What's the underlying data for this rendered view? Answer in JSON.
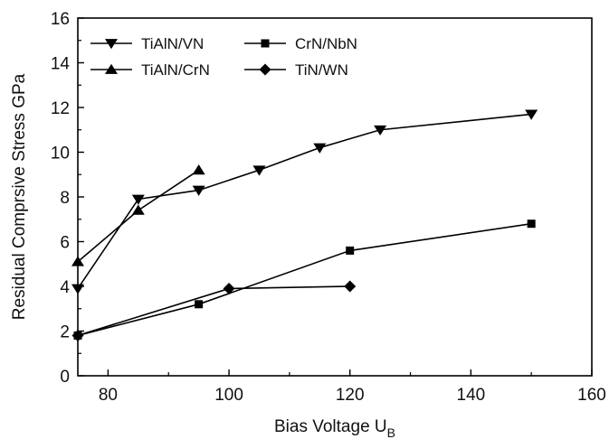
{
  "chart_data": {
    "type": "line",
    "xlabel": "Bias Voltage U",
    "xlabel_sub": "B",
    "ylabel": "Residual Comprsive Stress GPa",
    "xlim": [
      75,
      160
    ],
    "ylim": [
      0,
      16
    ],
    "xticks": [
      80,
      100,
      120,
      140,
      160
    ],
    "yticks": [
      0,
      2,
      4,
      6,
      8,
      10,
      12,
      14,
      16
    ],
    "grid": false,
    "legend_position": "top-left",
    "series": [
      {
        "name": "TiAlN/VN",
        "marker": "triangle-down",
        "x": [
          75,
          85,
          95,
          105,
          115,
          125,
          150
        ],
        "y": [
          3.9,
          7.9,
          8.3,
          9.2,
          10.2,
          11.0,
          11.7
        ]
      },
      {
        "name": "TiAlN/CrN",
        "marker": "triangle-up",
        "x": [
          75,
          85,
          95
        ],
        "y": [
          5.1,
          7.4,
          9.2
        ]
      },
      {
        "name": "CrN/NbN",
        "marker": "square",
        "x": [
          75,
          95,
          120,
          150
        ],
        "y": [
          1.8,
          3.2,
          5.6,
          6.8
        ]
      },
      {
        "name": "TiN/WN",
        "marker": "diamond",
        "x": [
          75,
          100,
          120
        ],
        "y": [
          1.8,
          3.9,
          4.0
        ]
      }
    ],
    "legend_order": [
      0,
      2,
      1,
      3
    ],
    "color": "#000000"
  }
}
